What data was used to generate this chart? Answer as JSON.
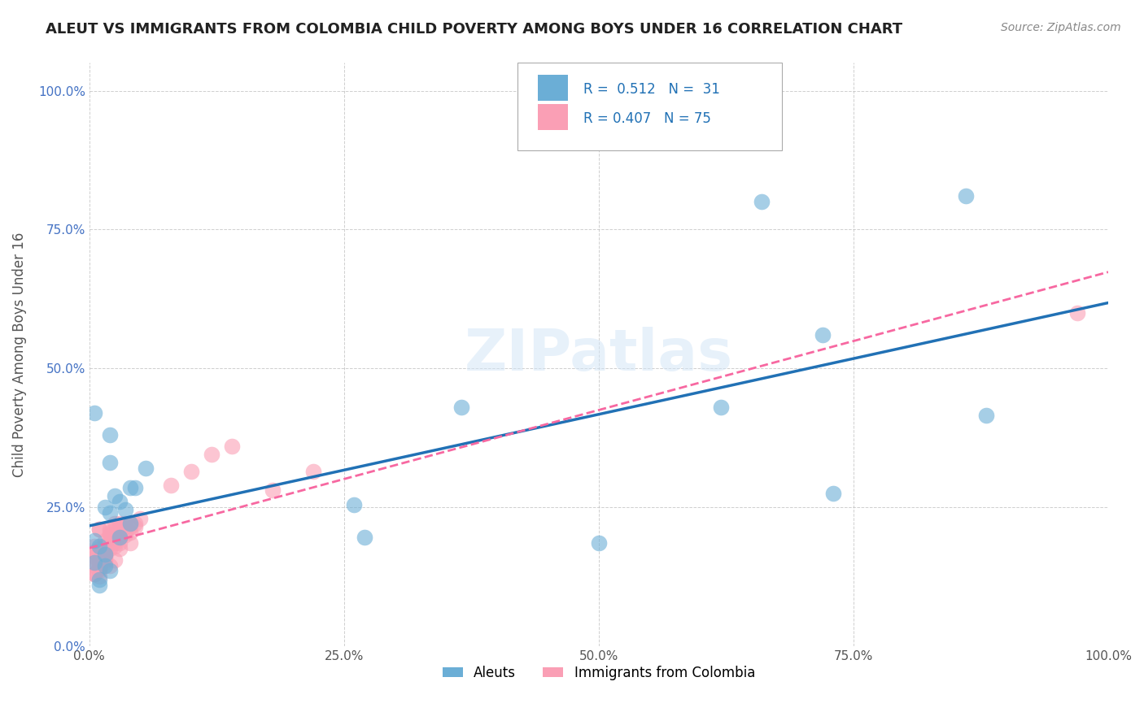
{
  "title": "ALEUT VS IMMIGRANTS FROM COLOMBIA CHILD POVERTY AMONG BOYS UNDER 16 CORRELATION CHART",
  "source": "Source: ZipAtlas.com",
  "ylabel": "Child Poverty Among Boys Under 16",
  "xlabel": "",
  "xlim": [
    0,
    1
  ],
  "ylim": [
    0,
    1
  ],
  "xtick_labels": [
    "0.0%",
    "100.0%"
  ],
  "ytick_labels": [
    "0.0%",
    "25.0%",
    "50.0%",
    "75.0%",
    "100.0%"
  ],
  "legend_R1": "R =  0.512",
  "legend_N1": "N =  31",
  "legend_R2": "R = 0.407",
  "legend_N2": "N = 75",
  "color_aleut": "#6baed6",
  "color_colombia": "#fa9fb5",
  "color_line_aleut": "#2171b5",
  "color_line_colombia": "#f768a1",
  "background_color": "#ffffff",
  "watermark": "ZIPatlas",
  "aleut_x": [
    0.365,
    0.62,
    0.66,
    0.86,
    0.5,
    0.72,
    0.005,
    0.02,
    0.04,
    0.015,
    0.01,
    0.025,
    0.035,
    0.04,
    0.02,
    0.03,
    0.045,
    0.055,
    0.03,
    0.015,
    0.01,
    0.005,
    0.02,
    0.26,
    0.27,
    0.005,
    0.01,
    0.02,
    0.015,
    0.73,
    0.88
  ],
  "aleut_y": [
    0.43,
    0.43,
    0.8,
    0.81,
    0.185,
    0.56,
    0.42,
    0.33,
    0.285,
    0.25,
    0.18,
    0.27,
    0.245,
    0.22,
    0.24,
    0.195,
    0.285,
    0.32,
    0.26,
    0.165,
    0.12,
    0.19,
    0.38,
    0.255,
    0.195,
    0.15,
    0.11,
    0.135,
    0.145,
    0.275,
    0.415
  ],
  "colombia_x": [
    0.005,
    0.01,
    0.015,
    0.005,
    0.015,
    0.01,
    0.02,
    0.025,
    0.03,
    0.005,
    0.01,
    0.015,
    0.02,
    0.025,
    0.015,
    0.01,
    0.005,
    0.025,
    0.03,
    0.035,
    0.04,
    0.02,
    0.015,
    0.01,
    0.005,
    0.02,
    0.025,
    0.03,
    0.015,
    0.1,
    0.12,
    0.08,
    0.14,
    0.18,
    0.22,
    0.005,
    0.01,
    0.015,
    0.02,
    0.025,
    0.03,
    0.01,
    0.02,
    0.015,
    0.025,
    0.01,
    0.005,
    0.035,
    0.04,
    0.045,
    0.05,
    0.015,
    0.02,
    0.025,
    0.03,
    0.01,
    0.005,
    0.015,
    0.025,
    0.03,
    0.04,
    0.035,
    0.02,
    0.045,
    0.015,
    0.025,
    0.03,
    0.02,
    0.01,
    0.005,
    0.015,
    0.035,
    0.04,
    0.025,
    0.97
  ],
  "colombia_y": [
    0.16,
    0.14,
    0.15,
    0.18,
    0.19,
    0.21,
    0.2,
    0.22,
    0.175,
    0.13,
    0.125,
    0.165,
    0.145,
    0.155,
    0.18,
    0.21,
    0.17,
    0.195,
    0.21,
    0.22,
    0.185,
    0.19,
    0.165,
    0.175,
    0.155,
    0.21,
    0.195,
    0.205,
    0.175,
    0.315,
    0.345,
    0.29,
    0.36,
    0.28,
    0.315,
    0.17,
    0.145,
    0.16,
    0.175,
    0.2,
    0.22,
    0.135,
    0.185,
    0.17,
    0.19,
    0.155,
    0.145,
    0.215,
    0.205,
    0.22,
    0.23,
    0.175,
    0.195,
    0.21,
    0.185,
    0.15,
    0.13,
    0.16,
    0.195,
    0.215,
    0.22,
    0.205,
    0.185,
    0.215,
    0.165,
    0.18,
    0.195,
    0.205,
    0.14,
    0.13,
    0.155,
    0.2,
    0.215,
    0.185,
    0.6
  ]
}
